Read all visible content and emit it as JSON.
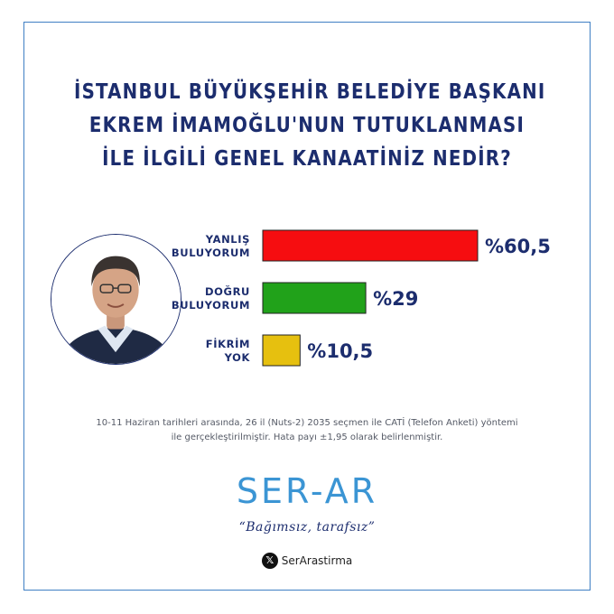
{
  "title_lines": [
    "İSTANBUL BÜYÜKŞEHİR BELEDİYE BAŞKANI",
    "EKREM İMAMOĞLU'NUN TUTUKLANMASI",
    "İLE İLGİLİ GENEL KANAATİNİZ NEDİR?"
  ],
  "chart_data": {
    "type": "bar",
    "orientation": "horizontal",
    "title": "İSTANBUL BÜYÜKŞEHİR BELEDİYE BAŞKANI EKREM İMAMOĞLU'NUN TUTUKLANMASI İLE İLGİLİ GENEL KANAATİNİZ NEDİR?",
    "categories": [
      [
        "YANLIŞ",
        "BULUYORUM"
      ],
      [
        "DOĞRU",
        "BULUYORUM"
      ],
      [
        "FİKRİM",
        "YOK"
      ]
    ],
    "values": [
      60.5,
      29,
      10.5
    ],
    "value_labels": [
      "%60,5",
      "%29",
      "%10,5"
    ],
    "colors": [
      "#f60d10",
      "#21a21a",
      "#e6c00f"
    ],
    "xlim": [
      0,
      60.5
    ],
    "grid": false,
    "legend": "none"
  },
  "footnote_lines": [
    "10-11 Haziran tarihleri arasında, 26 il (Nuts-2) 2035 seçmen ile CATİ (Telefon Anketi) yöntemi",
    "ile gerçekleştirilmiştir. Hata payı ±1,95 olarak belirlenmiştir."
  ],
  "brand": {
    "logo_text": "SER-AR",
    "tagline": "“Bağımsız, tarafsız”",
    "social_icon": "x-logo-icon",
    "social_handle": "SerArastirma",
    "accent_color": "#3b95d4",
    "title_color": "#1c2d6e"
  },
  "portrait_icon": "person-portrait-icon"
}
